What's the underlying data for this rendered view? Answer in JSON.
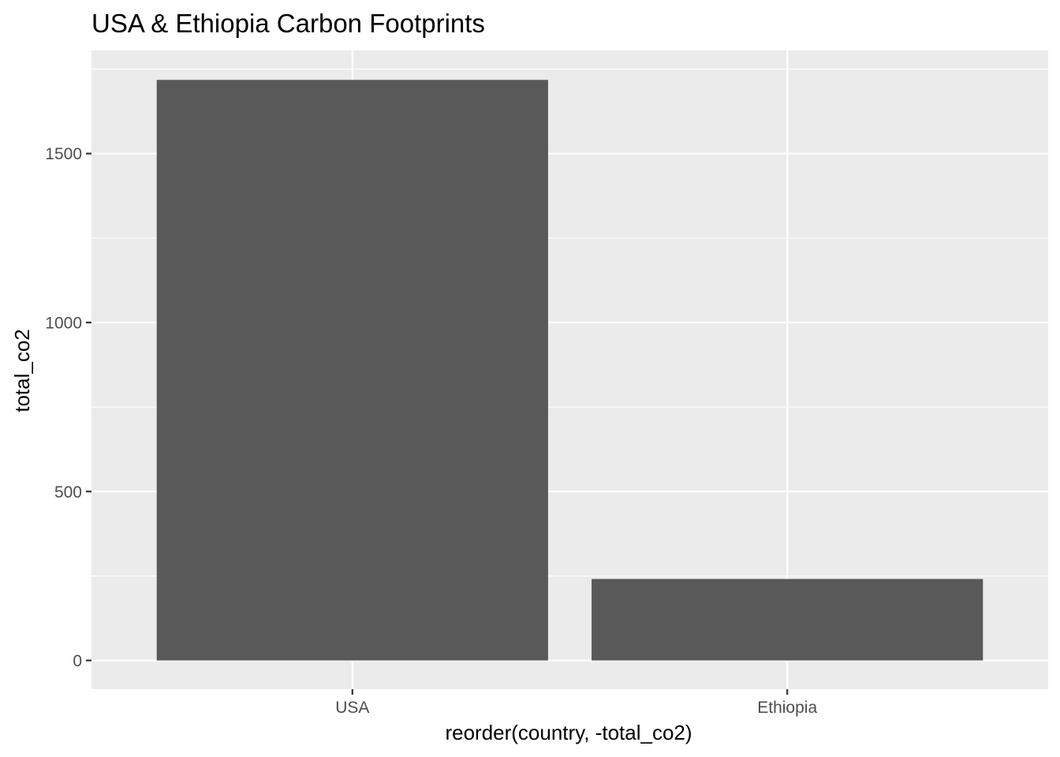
{
  "chart_data": {
    "type": "bar",
    "title": "USA & Ethiopia Carbon Footprints",
    "xlabel": "reorder(country, -total_co2)",
    "ylabel": "total_co2",
    "categories": [
      "USA",
      "Ethiopia"
    ],
    "values": [
      1718,
      241
    ],
    "ylim": [
      -85,
      1805
    ],
    "yticks": [
      0,
      500,
      1000,
      1500
    ],
    "ytick_labels": [
      "0",
      "500",
      "1000",
      "1500"
    ],
    "grid": true,
    "legend": "none",
    "colors": {
      "bar": "#595959",
      "panel": "#ebebeb",
      "grid": "#ffffff",
      "tick_text": "#4d4d4d",
      "tick_mark": "#333333"
    }
  }
}
